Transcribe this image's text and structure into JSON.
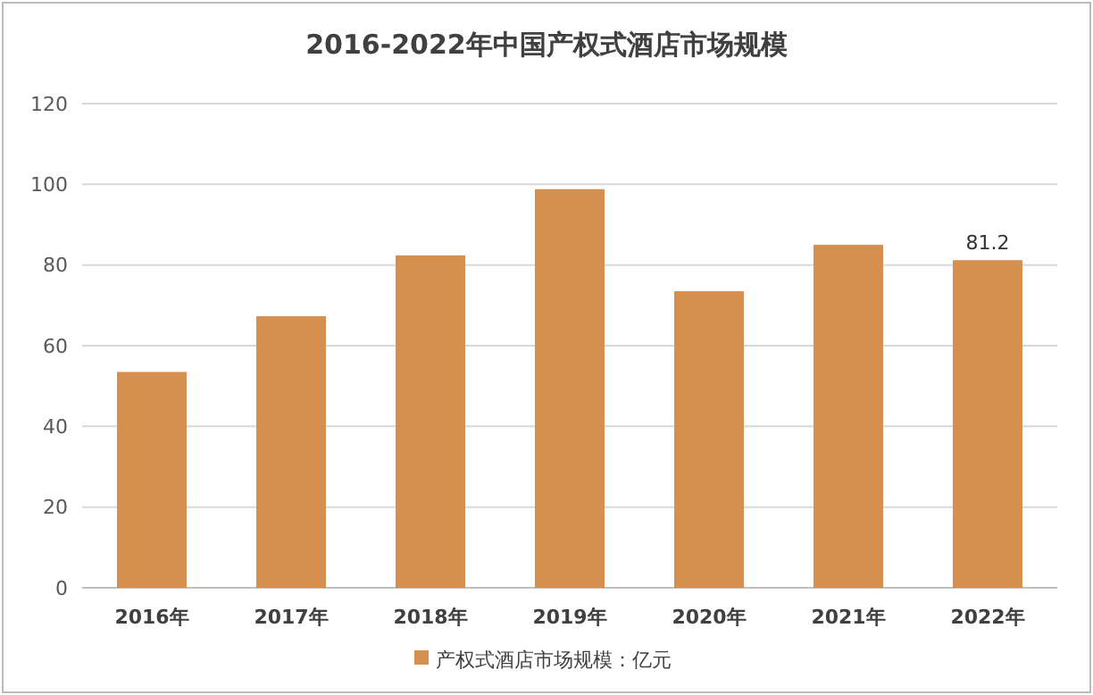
{
  "chart_data": {
    "type": "bar",
    "title": "2016-2022年中国产权式酒店市场规模",
    "categories": [
      "2016年",
      "2017年",
      "2018年",
      "2019年",
      "2020年",
      "2021年",
      "2022年"
    ],
    "series": [
      {
        "name": "产权式酒店市场规模：亿元",
        "color": "#d58f4f",
        "values": [
          53.5,
          67.3,
          82.4,
          98.8,
          73.5,
          85,
          81.2
        ],
        "value_labels": [
          null,
          null,
          null,
          null,
          null,
          null,
          "81.2"
        ]
      }
    ],
    "ylim": [
      0,
      120
    ],
    "yticks": [
      0,
      20,
      40,
      60,
      80,
      100,
      120
    ],
    "grid": "y",
    "legend": "bottom"
  }
}
